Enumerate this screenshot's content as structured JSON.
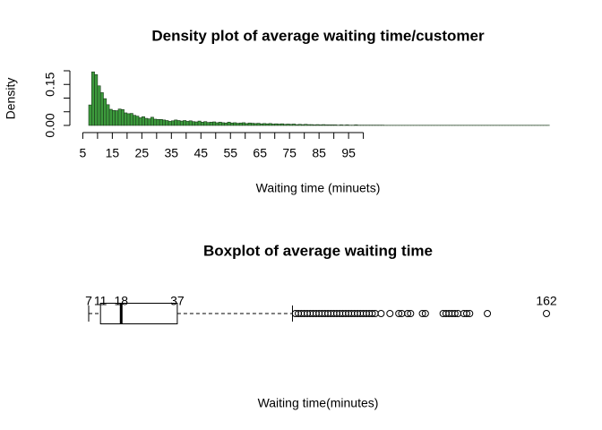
{
  "chart_data": [
    {
      "type": "histogram",
      "title": "Density plot of average waiting time/customer",
      "x_label": "Waiting time (minuets)",
      "y_label": "Density",
      "color": "#3c9a3c",
      "edge_color": "#1c3a1c",
      "xlim": [
        7,
        162
      ],
      "ylim": [
        0,
        0.2
      ],
      "xticks": [
        5,
        15,
        25,
        35,
        45,
        55,
        65,
        75,
        85,
        95
      ],
      "minor_xticks": [
        10,
        20,
        30,
        40,
        50,
        60,
        70,
        80,
        90,
        100
      ],
      "yticks": [
        {
          "value": 0,
          "label": "0.00"
        },
        0.15
      ],
      "minor_yticks": [
        0.05,
        0.1,
        0.2
      ],
      "bins": [
        7,
        8,
        9,
        10,
        11,
        12,
        13,
        14,
        15,
        16,
        17,
        18,
        19,
        20,
        21,
        22,
        23,
        24,
        25,
        26,
        27,
        28,
        29,
        30,
        31,
        32,
        33,
        34,
        35,
        36,
        37,
        38,
        39,
        40,
        41,
        42,
        43,
        44,
        45,
        46,
        47,
        48,
        49,
        50,
        51,
        52,
        53,
        54,
        55,
        56,
        57,
        58,
        59,
        60,
        61,
        62,
        63,
        64,
        65,
        66,
        67,
        68,
        69,
        70,
        71,
        72,
        73,
        74,
        75,
        76,
        77,
        78,
        79,
        80,
        81,
        82,
        83,
        84,
        85,
        86,
        87,
        88,
        89,
        90,
        91,
        92,
        93,
        94,
        95,
        96,
        97,
        98,
        99,
        100,
        101,
        102,
        103,
        104,
        105,
        106,
        107,
        108,
        109,
        110,
        111,
        112,
        113,
        114,
        115,
        116,
        117,
        118,
        119,
        120,
        121,
        122,
        123,
        124,
        125,
        126,
        127,
        128,
        129,
        130,
        131,
        132,
        133,
        134,
        135,
        136,
        137,
        138,
        139,
        140,
        141,
        142,
        143,
        144,
        145,
        146,
        147,
        148,
        149,
        150,
        151,
        152,
        153,
        154,
        155,
        156,
        157,
        158,
        159,
        160,
        161,
        162,
        163
      ],
      "values": [
        0.075,
        0.196,
        0.186,
        0.145,
        0.12,
        0.098,
        0.076,
        0.059,
        0.055,
        0.054,
        0.06,
        0.058,
        0.046,
        0.043,
        0.044,
        0.037,
        0.034,
        0.028,
        0.032,
        0.026,
        0.024,
        0.03,
        0.023,
        0.022,
        0.022,
        0.02,
        0.018,
        0.015,
        0.017,
        0.02,
        0.018,
        0.016,
        0.018,
        0.015,
        0.017,
        0.014,
        0.013,
        0.016,
        0.012,
        0.014,
        0.011,
        0.012,
        0.013,
        0.01,
        0.012,
        0.01,
        0.009,
        0.012,
        0.009,
        0.01,
        0.008,
        0.009,
        0.01,
        0.007,
        0.009,
        0.008,
        0.007,
        0.008,
        0.006,
        0.007,
        0.006,
        0.007,
        0.005,
        0.006,
        0.005,
        0.006,
        0.004,
        0.005,
        0.004,
        0.005,
        0.003,
        0.004,
        0.003,
        0.004,
        0.003,
        0.003,
        0.002,
        0.003,
        0.002,
        0.003,
        0.002,
        0.002,
        0.002,
        0.002,
        0.001,
        0.002,
        0.001,
        0.002,
        0.001,
        0.001,
        0.002,
        0.001,
        0.001,
        0.001,
        0.001,
        0.001,
        0.001,
        0.001,
        0.001,
        0.001,
        0.0005,
        0.0005,
        0.0005,
        0.0005,
        0.0005,
        0.0005,
        0.0005,
        0.0005,
        0.0005,
        0.0005,
        0.0005,
        0.0005,
        0.0005,
        0.0005,
        0.0005,
        0.0005,
        0.0005,
        0.0005,
        0.0005,
        0.0005,
        0.0005,
        0.0005,
        0.0005,
        0.0005,
        0.0005,
        0.0005,
        0.0005,
        0.0005,
        0.0005,
        0.0005,
        0.0005,
        0.0005,
        0.0005,
        0.0005,
        0.0005,
        0.0005,
        0.0005,
        0.0005,
        0.0005,
        0.0005,
        0.0005,
        0.0005,
        0.0005,
        0.0005,
        0.0005,
        0.0005,
        0.0005,
        0.0005,
        0.0005,
        0.0005,
        0.0005,
        0.0005,
        0.0005,
        0.0005,
        0.0005,
        0.0005
      ]
    },
    {
      "type": "boxplot",
      "title": "Boxplot of average waiting time",
      "x_label": "Waiting time(minutes)",
      "min": 7,
      "q1": 11,
      "median": 18,
      "q3": 37,
      "whisker_high": 76,
      "outliers": [
        77,
        78,
        79,
        80,
        81,
        82,
        83,
        84,
        85,
        86,
        87,
        88,
        89,
        90,
        91,
        92,
        93,
        94,
        95,
        96,
        97,
        98,
        99,
        100,
        101,
        102,
        103,
        104,
        106,
        109,
        112,
        113,
        115,
        116,
        120,
        121,
        127,
        128,
        129,
        130,
        131,
        132,
        134,
        135,
        136,
        142,
        162
      ]
    }
  ]
}
